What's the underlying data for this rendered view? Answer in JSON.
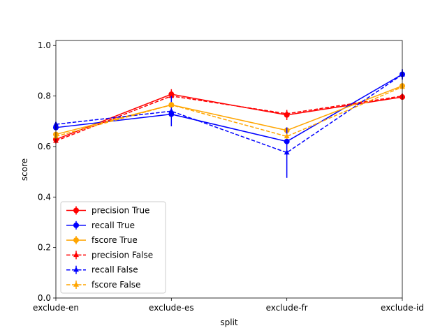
{
  "chart_data": {
    "type": "line",
    "title": "",
    "xlabel": "split",
    "ylabel": "score",
    "categories": [
      "exclude-en",
      "exclude-es",
      "exclude-fr",
      "exclude-id"
    ],
    "ylim": [
      0.0,
      1.0
    ],
    "yticks": [
      "0.0",
      "0.2",
      "0.4",
      "0.6",
      "0.8",
      "1.0"
    ],
    "grid": false,
    "legend_position": "lower-left",
    "series": [
      {
        "name": "precision True",
        "color": "#ff0000",
        "dash": false,
        "marker": "circle",
        "values": [
          0.628,
          0.807,
          0.725,
          0.796
        ],
        "errors": [
          0.01,
          0.02,
          0.02,
          0.01
        ]
      },
      {
        "name": "recall True",
        "color": "#0000ff",
        "dash": false,
        "marker": "circle",
        "values": [
          0.675,
          0.728,
          0.62,
          0.886
        ],
        "errors": [
          0.01,
          0.01,
          0.01,
          0.02
        ]
      },
      {
        "name": "fscore True",
        "color": "#ffa500",
        "dash": false,
        "marker": "circle",
        "values": [
          0.648,
          0.765,
          0.664,
          0.84
        ],
        "errors": [
          0.01,
          0.01,
          0.01,
          0.01
        ]
      },
      {
        "name": "precision False",
        "color": "#ff0000",
        "dash": true,
        "marker": "triangle",
        "values": [
          0.622,
          0.8,
          0.73,
          0.8
        ],
        "errors": [
          0.01,
          0.01,
          0.01,
          0.01
        ]
      },
      {
        "name": "recall False",
        "color": "#0000ff",
        "dash": true,
        "marker": "triangle",
        "values": [
          0.688,
          0.74,
          0.576,
          0.885
        ],
        "errors": [
          0.01,
          0.06,
          0.1,
          0.02
        ]
      },
      {
        "name": "fscore False",
        "color": "#ffa500",
        "dash": true,
        "marker": "triangle",
        "values": [
          0.64,
          0.765,
          0.64,
          0.836
        ],
        "errors": [
          0.01,
          0.01,
          0.01,
          0.01
        ]
      }
    ]
  }
}
